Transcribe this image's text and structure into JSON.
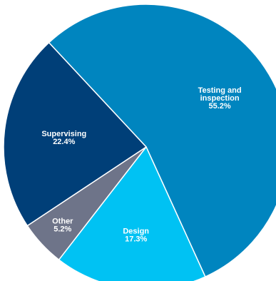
{
  "chart_data": {
    "type": "pie",
    "slices": [
      {
        "label_lines": [
          "Testing and",
          "inspection"
        ],
        "value": 55.2,
        "value_label": "55.2%",
        "color": "#0085BF"
      },
      {
        "label_lines": [
          "Design"
        ],
        "value": 17.3,
        "value_label": "17.3%",
        "color": "#00C2F3"
      },
      {
        "label_lines": [
          "Other"
        ],
        "value": 5.2,
        "value_label": "5.2%",
        "color": "#6E7489"
      },
      {
        "label_lines": [
          "Supervising"
        ],
        "value": 22.4,
        "value_label": "22.4%",
        "color": "#003F78"
      }
    ],
    "slice_border_color": "#ffffff",
    "label_color": "#ffffff"
  }
}
